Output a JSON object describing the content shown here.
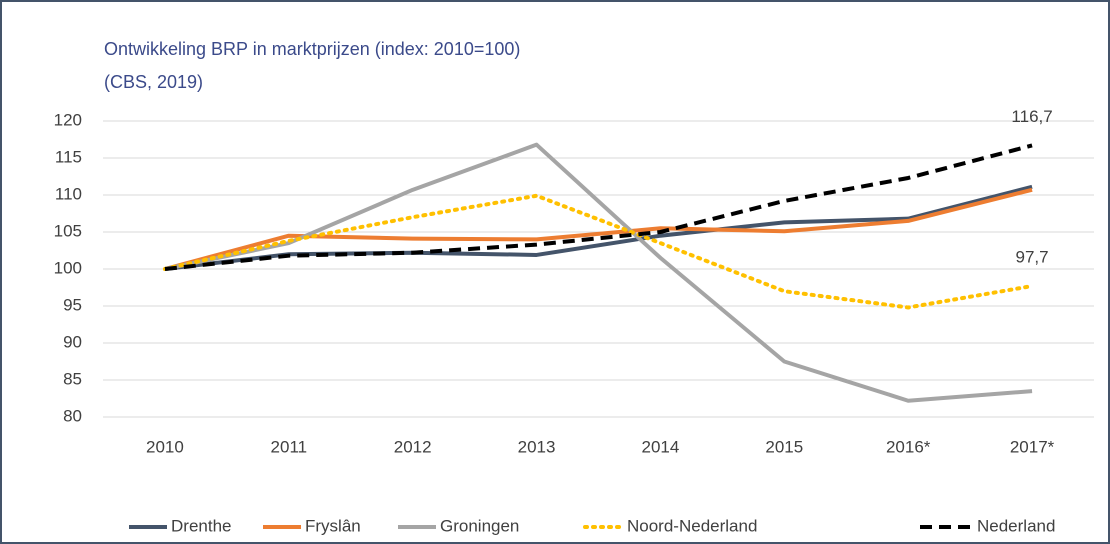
{
  "chart_data": {
    "type": "line",
    "title": "Ontwikkeling BRP in marktprijzen (index: 2010=100)",
    "subtitle": "(CBS, 2019)",
    "categories": [
      "2010",
      "2011",
      "2012",
      "2013",
      "2014",
      "2015",
      "2016*",
      "2017*"
    ],
    "series": [
      {
        "name": "Drenthe",
        "color": "#44546a",
        "style": "solid",
        "values": [
          100,
          102,
          102.2,
          101.9,
          104.5,
          106.3,
          106.8,
          111.1
        ]
      },
      {
        "name": "Fryslân",
        "color": "#ed7d31",
        "style": "solid",
        "values": [
          100,
          104.5,
          104.1,
          104.0,
          105.5,
          105.1,
          106.5,
          110.7
        ]
      },
      {
        "name": "Groningen",
        "color": "#a5a5a5",
        "style": "solid",
        "values": [
          100,
          103.5,
          110.7,
          116.8,
          101.5,
          87.5,
          82.2,
          83.5
        ]
      },
      {
        "name": "Noord-Nederland",
        "color": "#ffc000",
        "style": "dotted",
        "values": [
          100,
          103.8,
          107,
          109.9,
          103.5,
          97,
          94.8,
          97.7
        ],
        "value_labels": [
          null,
          null,
          null,
          null,
          null,
          null,
          null,
          "97,7"
        ]
      },
      {
        "name": "Nederland",
        "color": "#000000",
        "style": "dashed",
        "values": [
          100,
          101.8,
          102.2,
          103.3,
          105,
          109.2,
          112.3,
          116.7
        ],
        "value_labels": [
          null,
          null,
          null,
          null,
          null,
          null,
          null,
          "116,7"
        ]
      }
    ],
    "ylim": [
      80,
      120
    ],
    "yticks": [
      80,
      85,
      90,
      95,
      100,
      105,
      110,
      115,
      120
    ],
    "grid": true,
    "legend": "bottom"
  }
}
